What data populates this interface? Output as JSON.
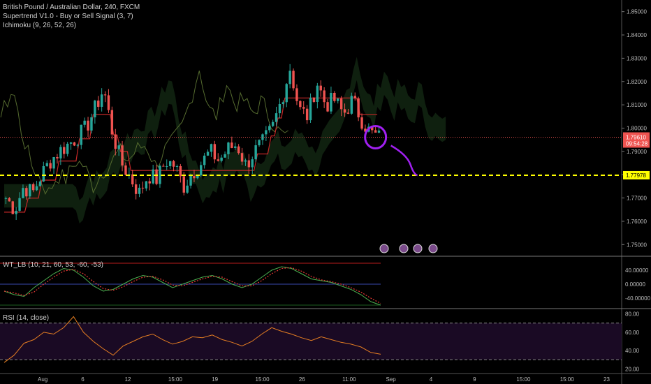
{
  "header": {
    "title": "British Pound / Australian Dollar, 240, FXCM",
    "indicator_1": "Supertrend V1.0 - Buy or Sell Signal (3, 7)",
    "indicator_2": "Ichimoku (9, 26, 52, 26)"
  },
  "colors": {
    "background": "#000000",
    "bull": "#26a69a",
    "bear": "#ef5350",
    "supertrend_up": "#2e7d32",
    "supertrend_down": "#c62828",
    "cloud": "#1b3a1b",
    "support_line": "#ffff00",
    "annotation": "#a020f0",
    "wt_fast": "#4caf50",
    "wt_slow": "#e53935",
    "rsi": "#e67e22"
  },
  "chart_data": [
    {
      "type": "candlestick",
      "title": "British Pound / Australian Dollar, 240, FXCM",
      "yaxis": {
        "range": [
          1.745,
          1.855
        ],
        "ticks": [
          "1.85000",
          "1.84000",
          "1.83000",
          "1.82000",
          "1.81000",
          "1.80000",
          "1.79000",
          "1.78000",
          "1.77000",
          "1.76000",
          "1.75000"
        ]
      },
      "xaxis": {
        "ticks": [
          "Aug",
          "6",
          "12",
          "15:00",
          "19",
          "15:00",
          "26",
          "11:00",
          "Sep",
          "4",
          "9",
          "15:00",
          "15:00",
          "23"
        ]
      },
      "close_path": [
        1.77,
        1.765,
        1.775,
        1.772,
        1.78,
        1.786,
        1.79,
        1.793,
        1.796,
        1.8,
        1.808,
        1.817,
        1.798,
        1.785,
        1.779,
        1.772,
        1.78,
        1.778,
        1.786,
        1.784,
        1.775,
        1.781,
        1.785,
        1.79,
        1.786,
        1.791,
        1.793,
        1.784,
        1.79,
        1.794,
        1.8,
        1.812,
        1.826,
        1.808,
        1.805,
        1.82,
        1.81,
        1.812,
        1.806,
        1.812,
        1.804,
        1.798,
        1.796
      ],
      "price_labels": [
        {
          "value": 1.7961,
          "text": "1.79610",
          "sub": "09:54:28"
        },
        {
          "value": 1.77978,
          "text": "1.77978"
        }
      ],
      "support_level": 1.77978
    },
    {
      "type": "line",
      "title": "WT_LB (10, 21, 60, 53, -60, -53)",
      "yaxis": {
        "ticks": [
          "40.00000",
          "0.00000",
          "-40.00000"
        ]
      },
      "series": [
        {
          "values": [
            -20,
            -30,
            -35,
            -10,
            10,
            30,
            45,
            40,
            20,
            -5,
            -20,
            -15,
            0,
            15,
            25,
            20,
            5,
            -10,
            0,
            10,
            20,
            25,
            15,
            0,
            -10,
            0,
            20,
            40,
            50,
            45,
            30,
            15,
            10,
            5,
            -5,
            -15,
            -30,
            -50,
            -60
          ]
        }
      ]
    },
    {
      "type": "line",
      "title": "RSI (14, close)",
      "yaxis": {
        "range": [
          15,
          85
        ],
        "ticks": [
          "80.00",
          "60.00",
          "40.00",
          "20.00"
        ]
      },
      "series": [
        {
          "values": [
            27,
            35,
            48,
            52,
            60,
            58,
            65,
            77,
            60,
            50,
            42,
            35,
            45,
            50,
            55,
            58,
            52,
            47,
            50,
            55,
            54,
            57,
            52,
            49,
            45,
            50,
            58,
            65,
            61,
            58,
            54,
            51,
            55,
            52,
            49,
            47,
            44,
            38,
            36
          ]
        }
      ]
    }
  ]
}
